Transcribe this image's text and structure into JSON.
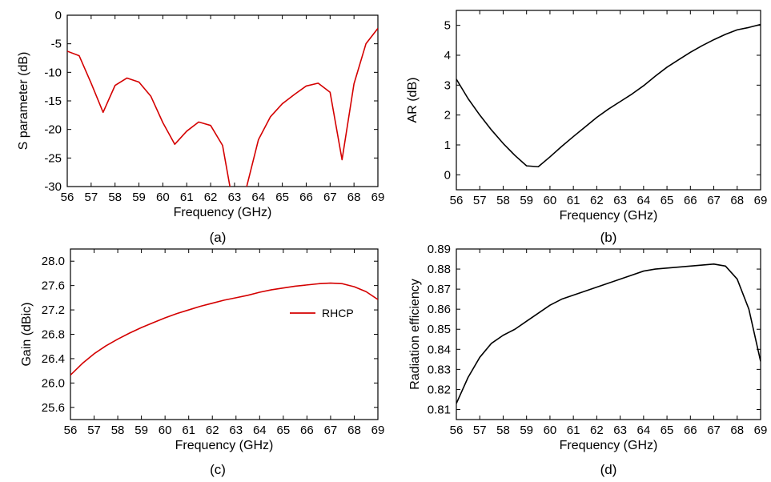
{
  "figure": {
    "panels": [
      "(a)",
      "(b)",
      "(c)",
      "(d)"
    ]
  },
  "chart_data": [
    {
      "type": "line",
      "panel_label": "(a)",
      "xlabel": "Frequency (GHz)",
      "ylabel": "S parameter (dB)",
      "xlim": [
        56,
        69
      ],
      "ylim": [
        -30,
        0
      ],
      "xticks": [
        56,
        57,
        58,
        59,
        60,
        61,
        62,
        63,
        64,
        65,
        66,
        67,
        68,
        69
      ],
      "yticks": [
        0,
        -5,
        -10,
        -15,
        -20,
        -25,
        -30
      ],
      "grid": false,
      "series": [
        {
          "color": "#d40000",
          "x": [
            56,
            56.5,
            57,
            57.5,
            58,
            58.5,
            59,
            59.5,
            60,
            60.5,
            61,
            61.5,
            62,
            62.5,
            62.85,
            63.45,
            64,
            64.5,
            65,
            65.5,
            66,
            66.5,
            67,
            67.5,
            68,
            68.5,
            69
          ],
          "y": [
            -6.3,
            -7.1,
            -11.9,
            -17.0,
            -12.3,
            -11.0,
            -11.7,
            -14.2,
            -18.8,
            -22.6,
            -20.3,
            -18.7,
            -19.3,
            -22.8,
            -31,
            -31,
            -21.8,
            -17.8,
            -15.5,
            -13.9,
            -12.4,
            -11.9,
            -13.5,
            -25.3,
            -12.0,
            -5.0,
            -2.3
          ]
        }
      ]
    },
    {
      "type": "line",
      "panel_label": "(b)",
      "xlabel": "Frequency (GHz)",
      "ylabel": "AR (dB)",
      "xlim": [
        56,
        69
      ],
      "ylim": [
        -0.5,
        5.5
      ],
      "xticks": [
        56,
        57,
        58,
        59,
        60,
        61,
        62,
        63,
        64,
        65,
        66,
        67,
        68,
        69
      ],
      "yticks": [
        0,
        1,
        2,
        3,
        4,
        5
      ],
      "grid": false,
      "series": [
        {
          "color": "#000000",
          "x": [
            56,
            56.5,
            57,
            57.5,
            58,
            58.5,
            59,
            59.5,
            60,
            60.5,
            61,
            61.5,
            62,
            62.5,
            63,
            63.5,
            64,
            64.5,
            65,
            65.5,
            66,
            66.5,
            67,
            67.5,
            68,
            68.5,
            69
          ],
          "y": [
            3.2,
            2.55,
            2.0,
            1.5,
            1.05,
            0.65,
            0.3,
            0.27,
            0.6,
            0.95,
            1.28,
            1.6,
            1.92,
            2.2,
            2.45,
            2.7,
            2.98,
            3.3,
            3.6,
            3.85,
            4.1,
            4.32,
            4.52,
            4.7,
            4.85,
            4.93,
            5.03
          ]
        }
      ]
    },
    {
      "type": "line",
      "panel_label": "(c)",
      "xlabel": "Frequency (GHz)",
      "ylabel": "Gain (dBic)",
      "xlim": [
        56,
        69
      ],
      "ylim": [
        25.4,
        28.2
      ],
      "xticks": [
        56,
        57,
        58,
        59,
        60,
        61,
        62,
        63,
        64,
        65,
        66,
        67,
        68,
        69
      ],
      "yticks": [
        28.0,
        27.6,
        27.2,
        26.8,
        26.4,
        26.0,
        25.6
      ],
      "ytick_labels": [
        "28.0",
        "27.6",
        "27.2",
        "26.8",
        "26.4",
        "26.0",
        "25.6"
      ],
      "grid": false,
      "legend": {
        "position": "right",
        "entries": [
          "RHCP"
        ]
      },
      "series": [
        {
          "name": "RHCP",
          "color": "#d40000",
          "x": [
            56,
            56.5,
            57,
            57.5,
            58,
            58.5,
            59,
            59.5,
            60,
            60.5,
            61,
            61.5,
            62,
            62.5,
            63,
            63.5,
            64,
            64.5,
            65,
            65.5,
            66,
            66.5,
            67,
            67.5,
            68,
            68.5,
            69
          ],
          "y": [
            26.13,
            26.32,
            26.48,
            26.61,
            26.72,
            26.82,
            26.91,
            26.99,
            27.07,
            27.14,
            27.2,
            27.26,
            27.31,
            27.36,
            27.4,
            27.44,
            27.49,
            27.53,
            27.56,
            27.59,
            27.61,
            27.63,
            27.64,
            27.63,
            27.58,
            27.5,
            27.37
          ]
        }
      ]
    },
    {
      "type": "line",
      "panel_label": "(d)",
      "xlabel": "Frequency (GHz)",
      "ylabel": "Radiation efficiency",
      "xlim": [
        56,
        69
      ],
      "ylim": [
        0.805,
        0.89
      ],
      "xticks": [
        56,
        57,
        58,
        59,
        60,
        61,
        62,
        63,
        64,
        65,
        66,
        67,
        68,
        69
      ],
      "yticks": [
        0.89,
        0.88,
        0.87,
        0.86,
        0.85,
        0.84,
        0.83,
        0.82,
        0.81
      ],
      "ytick_labels": [
        "0.89",
        "0.88",
        "0.87",
        "0.86",
        "0.85",
        "0.84",
        "0.83",
        "0.82",
        "0.81"
      ],
      "grid": false,
      "series": [
        {
          "color": "#000000",
          "x": [
            56,
            56.5,
            57,
            57.5,
            58,
            58.5,
            59,
            59.5,
            60,
            60.5,
            61,
            61.5,
            62,
            62.5,
            63,
            63.5,
            64,
            64.5,
            65,
            65.5,
            66,
            66.5,
            67,
            67.5,
            68,
            68.5,
            69
          ],
          "y": [
            0.813,
            0.826,
            0.836,
            0.843,
            0.847,
            0.85,
            0.854,
            0.858,
            0.862,
            0.865,
            0.867,
            0.869,
            0.871,
            0.873,
            0.875,
            0.877,
            0.879,
            0.88,
            0.8805,
            0.881,
            0.8815,
            0.882,
            0.8825,
            0.8815,
            0.875,
            0.86,
            0.834
          ]
        }
      ]
    }
  ]
}
